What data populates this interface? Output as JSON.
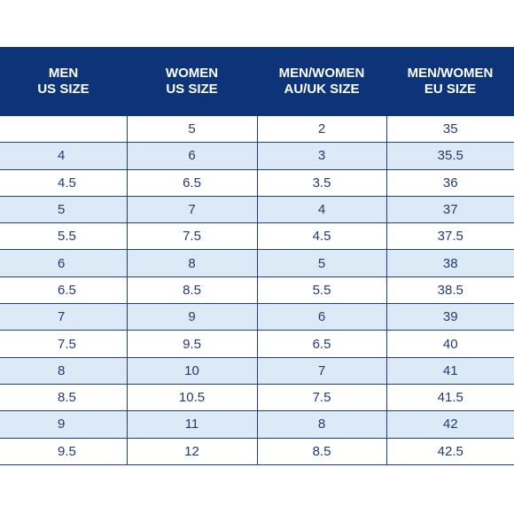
{
  "table": {
    "headers": [
      {
        "line1": "MEN",
        "line2": "US SIZE"
      },
      {
        "line1": "WOMEN",
        "line2": "US SIZE"
      },
      {
        "line1": "MEN/WOMEN",
        "line2": "AU/UK SIZE"
      },
      {
        "line1": "MEN/WOMEN",
        "line2": "EU SIZE"
      }
    ],
    "rows": [
      [
        "",
        "5",
        "2",
        "35"
      ],
      [
        "4",
        "6",
        "3",
        "35.5"
      ],
      [
        "4.5",
        "6.5",
        "3.5",
        "36"
      ],
      [
        "5",
        "7",
        "4",
        "37"
      ],
      [
        "5.5",
        "7.5",
        "4.5",
        "37.5"
      ],
      [
        "6",
        "8",
        "5",
        "38"
      ],
      [
        "6.5",
        "8.5",
        "5.5",
        "38.5"
      ],
      [
        "7",
        "9",
        "6",
        "39"
      ],
      [
        "7.5",
        "9.5",
        "6.5",
        "40"
      ],
      [
        "8",
        "10",
        "7",
        "41"
      ],
      [
        "8.5",
        "10.5",
        "7.5",
        "41.5"
      ],
      [
        "9",
        "11",
        "8",
        "42"
      ],
      [
        "9.5",
        "12",
        "8.5",
        "42.5"
      ]
    ]
  },
  "colors": {
    "header_bg": "#0d3479",
    "stripe": "#dce9f7",
    "text": "#233a6e",
    "grid": "#1e3f7e"
  }
}
